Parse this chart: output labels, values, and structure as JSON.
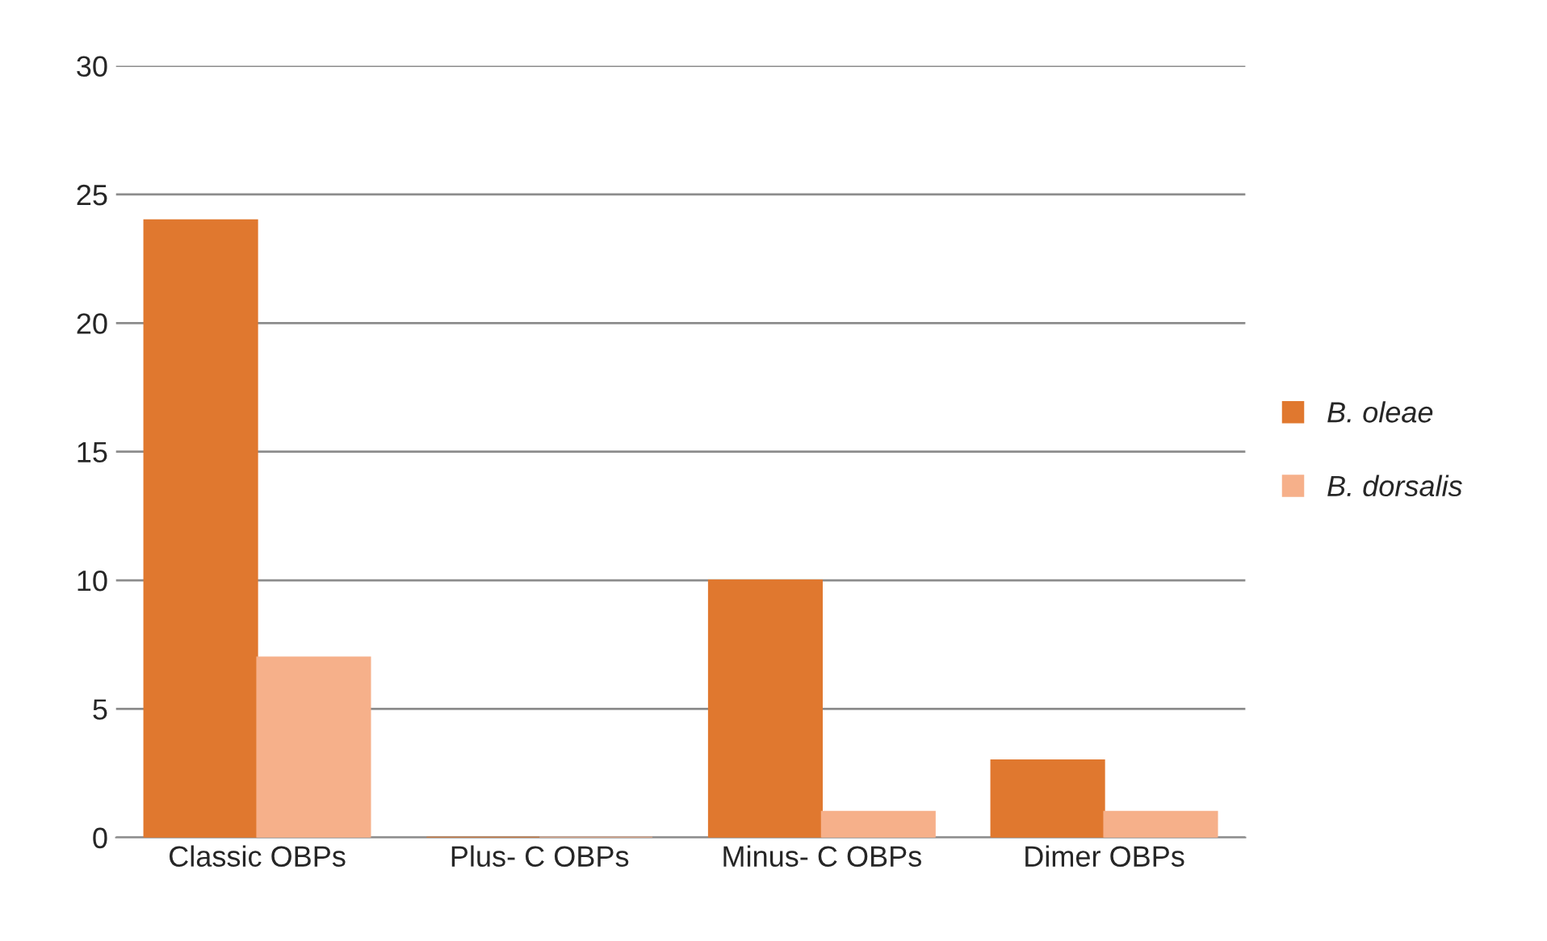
{
  "chart_data": {
    "type": "bar",
    "categories": [
      "Classic OBPs",
      "Plus- C OBPs",
      "Minus- C OBPs",
      "Dimer OBPs"
    ],
    "series": [
      {
        "name": "B. oleae",
        "color": "#e0782f",
        "values": [
          24,
          0,
          10,
          3
        ]
      },
      {
        "name": "B. dorsalis",
        "color": "#f6b08a",
        "values": [
          7,
          0,
          1,
          1
        ]
      }
    ],
    "ylim": [
      0,
      30
    ],
    "yticks": [
      0,
      5,
      10,
      15,
      20,
      25,
      30
    ],
    "grid": "y",
    "legend": "right"
  }
}
